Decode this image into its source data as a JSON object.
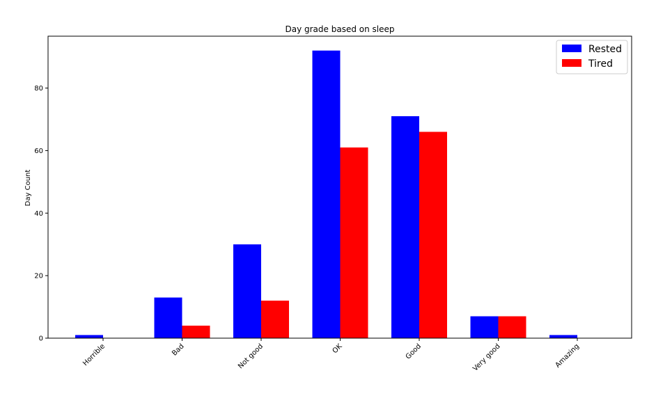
{
  "chart_data": {
    "type": "bar",
    "title": "Day grade based on sleep",
    "xlabel": "",
    "ylabel": "Day Count",
    "categories": [
      "Horrible",
      "Bad",
      "Not good",
      "OK",
      "Good",
      "Very good",
      "Amazing"
    ],
    "series": [
      {
        "name": "Rested",
        "color": "#0000ff",
        "values": [
          1,
          13,
          30,
          92,
          71,
          7,
          1
        ]
      },
      {
        "name": "Tired",
        "color": "#ff0000",
        "values": [
          0,
          4,
          12,
          61,
          66,
          7,
          0
        ]
      }
    ],
    "ylim": [
      0,
      96.6
    ],
    "yticks": [
      0,
      20,
      40,
      60,
      80
    ],
    "grid": false,
    "legend_position": "top-right"
  }
}
